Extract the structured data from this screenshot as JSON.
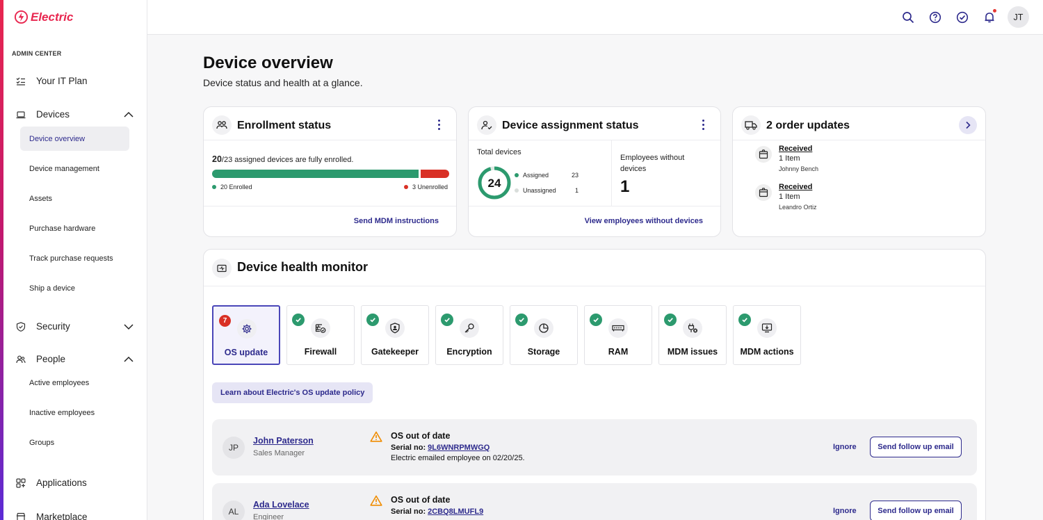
{
  "brand": {
    "name": "Electric",
    "color": "#e8264f"
  },
  "sidebar": {
    "section_label": "ADMIN CENTER",
    "top_items": [
      {
        "label": "Your IT Plan",
        "icon": "checklist-icon"
      },
      {
        "label": "Devices",
        "icon": "laptop-icon",
        "expanded": true
      },
      {
        "label": "Security",
        "icon": "shield-icon",
        "expanded": false
      },
      {
        "label": "People",
        "icon": "people-icon",
        "expanded": true
      },
      {
        "label": "Applications",
        "icon": "apps-grid-icon"
      },
      {
        "label": "Marketplace",
        "icon": "store-icon"
      }
    ],
    "device_items": [
      "Device overview",
      "Device management",
      "Assets",
      "Purchase hardware",
      "Track purchase requests",
      "Ship a device"
    ],
    "people_items": [
      "Active employees",
      "Inactive employees",
      "Groups"
    ]
  },
  "topbar": {
    "user_initials": "JT"
  },
  "page": {
    "title": "Device overview",
    "subtitle": "Device status and health at a glance."
  },
  "enrollment": {
    "title": "Enrollment status",
    "enrolled_count": "20",
    "summary_rest": "/23 assigned devices are fully enrolled.",
    "enrolled_fraction": 0.87,
    "enrolled_label": "20 Enrolled",
    "unenrolled_label": "3 Unenrolled",
    "action": "Send MDM instructions",
    "colors": {
      "enrolled": "#2c9a6e",
      "unenrolled": "#d93025"
    }
  },
  "assignment": {
    "title": "Device assignment status",
    "total_label": "Total devices",
    "total": "24",
    "assigned_label": "Assigned",
    "assigned": "23",
    "unassigned_label": "Unassigned",
    "unassigned": "1",
    "assigned_fraction": 0.958,
    "without_label": "Employees without devices",
    "without_value": "1",
    "action": "View employees without devices"
  },
  "orders": {
    "title": "2 order updates",
    "items": [
      {
        "status": "Received",
        "qty": "1 Item",
        "person": "Johnny Bench"
      },
      {
        "status": "Received",
        "qty": "1 Item",
        "person": "Leandro Ortiz"
      }
    ]
  },
  "health": {
    "title": "Device health monitor",
    "tiles": [
      {
        "label": "OS update",
        "icon": "gear-icon",
        "badge": "7",
        "active": true
      },
      {
        "label": "Firewall",
        "icon": "firewall-icon"
      },
      {
        "label": "Gatekeeper",
        "icon": "gatekeeper-shield-icon"
      },
      {
        "label": "Encryption",
        "icon": "key-icon"
      },
      {
        "label": "Storage",
        "icon": "pie-icon"
      },
      {
        "label": "RAM",
        "icon": "memory-icon"
      },
      {
        "label": "MDM issues",
        "icon": "plug-error-icon"
      },
      {
        "label": "MDM actions",
        "icon": "monitor-download-icon"
      }
    ],
    "policy_button": "Learn about Electric's OS update policy",
    "rows": [
      {
        "initials": "JP",
        "name": "John Paterson",
        "role": "Sales Manager",
        "status": "OS out of date",
        "serial_label": "Serial no:",
        "serial": "9L6WNRPMWGQ",
        "note": "Electric emailed employee on 02/20/25.",
        "ignore": "Ignore",
        "follow": "Send follow up email"
      },
      {
        "initials": "AL",
        "name": "Ada Lovelace",
        "role": "Engineer",
        "status": "OS out of date",
        "serial_label": "Serial no:",
        "serial": "2CBQ8LMUFL9",
        "note": "",
        "ignore": "Ignore",
        "follow": "Send follow up email"
      }
    ]
  }
}
